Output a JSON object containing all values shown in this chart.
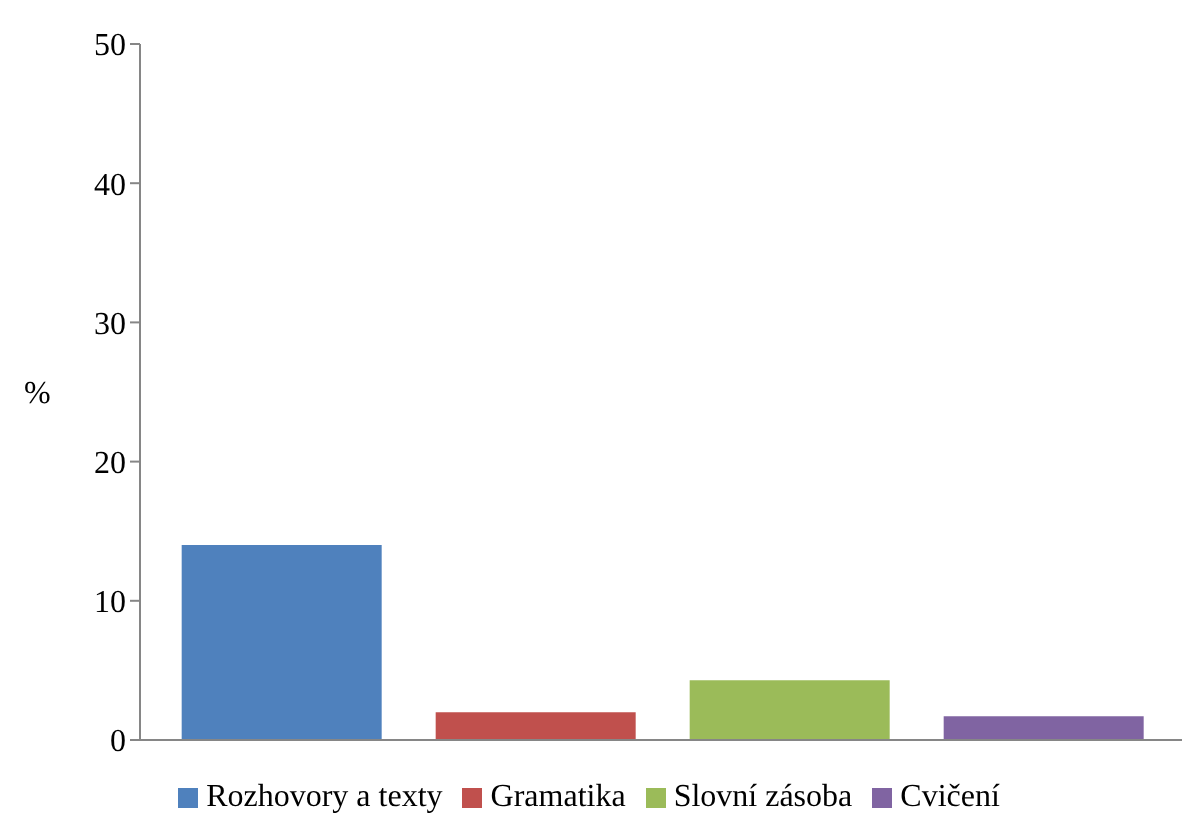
{
  "chart_data": {
    "type": "bar",
    "ylabel": "%",
    "categories": [
      null
    ],
    "series": [
      {
        "name": "Rozhovory a texty",
        "color": "#4f81bd",
        "values": [
          14
        ]
      },
      {
        "name": "Gramatika",
        "color": "#c0504d",
        "values": [
          2
        ]
      },
      {
        "name": "Slovní zásoba",
        "color": "#9bbb59",
        "values": [
          4.3
        ]
      },
      {
        "name": "Cvičení",
        "color": "#8064a2",
        "values": [
          1.7
        ]
      }
    ],
    "ylim": [
      0,
      50
    ],
    "yticks": [
      0,
      10,
      20,
      30,
      40,
      50
    ],
    "grid": false,
    "legend": "bottom"
  }
}
